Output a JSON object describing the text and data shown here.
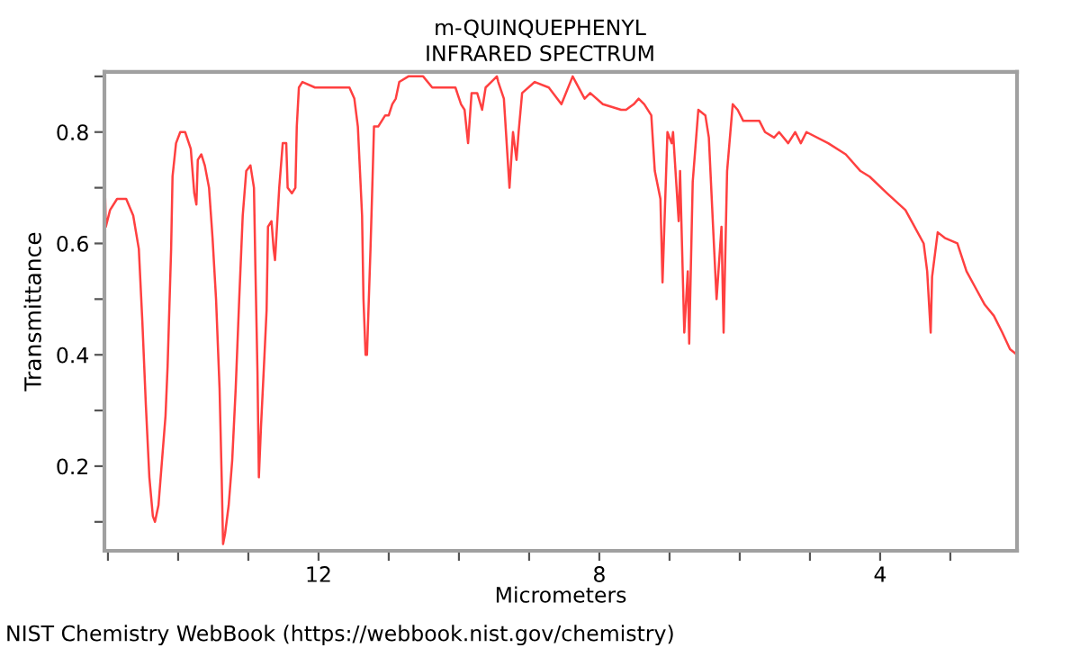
{
  "chart_data": {
    "type": "line",
    "title": "m-QUINQUEPHENYL",
    "subtitle": "INFRARED SPECTRUM",
    "xlabel": "Micrometers",
    "ylabel": "Transmittance",
    "annotations": [
      "NIST Chemistry WebBook (https://webbook.nist.gov/chemistry)"
    ],
    "xlim": [
      15.05,
      2.05
    ],
    "ylim": [
      0.048,
      0.908
    ],
    "xticks": [
      {
        "value": 15,
        "label": null
      },
      {
        "value": 14,
        "label": null
      },
      {
        "value": 13,
        "label": null
      },
      12,
      {
        "value": 11,
        "label": null
      },
      {
        "value": 10,
        "label": null
      },
      {
        "value": 9,
        "label": null
      },
      8,
      {
        "value": 7,
        "label": null
      },
      {
        "value": 6,
        "label": null
      },
      {
        "value": 5,
        "label": null
      },
      4,
      {
        "value": 3,
        "label": null
      }
    ],
    "yticks": [
      {
        "value": 0.1,
        "label": null
      },
      0.2,
      {
        "value": 0.3,
        "label": null
      },
      0.4,
      {
        "value": 0.5,
        "label": null
      },
      0.6,
      {
        "value": 0.7,
        "label": null
      },
      0.8,
      {
        "value": 0.9,
        "label": null
      }
    ],
    "grid": false,
    "legend": false,
    "marker": "none",
    "line_style": "solid",
    "series": [
      {
        "color": "#ff4040",
        "x": [
          15.04,
          15.03,
          14.97,
          14.87,
          14.74,
          14.64,
          14.56,
          14.51,
          14.46,
          14.41,
          14.36,
          14.33,
          14.28,
          14.23,
          14.18,
          14.15,
          14.1,
          14.08,
          14.03,
          13.97,
          13.9,
          13.82,
          13.77,
          13.74,
          13.72,
          13.67,
          13.62,
          13.56,
          13.51,
          13.46,
          13.41,
          13.38,
          13.36,
          13.33,
          13.28,
          13.23,
          13.18,
          13.13,
          13.08,
          13.03,
          12.97,
          12.92,
          12.9,
          12.87,
          12.85,
          12.82,
          12.77,
          12.74,
          12.72,
          12.67,
          12.64,
          12.62,
          12.56,
          12.51,
          12.46,
          12.44,
          12.38,
          12.33,
          12.31,
          12.28,
          12.23,
          12.05,
          11.82,
          11.67,
          11.56,
          11.49,
          11.44,
          11.38,
          11.36,
          11.33,
          11.31,
          11.26,
          11.23,
          11.21,
          11.15,
          11.1,
          11.05,
          11.0,
          10.95,
          10.9,
          10.85,
          10.72,
          10.51,
          10.38,
          10.21,
          10.05,
          9.97,
          9.92,
          9.87,
          9.82,
          9.74,
          9.67,
          9.62,
          9.54,
          9.46,
          9.44,
          9.36,
          9.28,
          9.23,
          9.18,
          9.15,
          9.1,
          8.92,
          8.72,
          8.54,
          8.38,
          8.21,
          8.13,
          7.95,
          7.69,
          7.62,
          7.51,
          7.44,
          7.36,
          7.26,
          7.21,
          7.13,
          7.1,
          7.03,
          6.97,
          6.95,
          6.87,
          6.85,
          6.79,
          6.74,
          6.72,
          6.67,
          6.59,
          6.49,
          6.44,
          6.38,
          6.33,
          6.26,
          6.23,
          6.18,
          6.1,
          6.03,
          5.95,
          5.72,
          5.64,
          5.51,
          5.44,
          5.31,
          5.21,
          5.13,
          5.05,
          4.74,
          4.49,
          4.28,
          4.15,
          3.9,
          3.64,
          3.51,
          3.38,
          3.33,
          3.28,
          3.26,
          3.18,
          3.08,
          2.9,
          2.77,
          2.64,
          2.51,
          2.38,
          2.26,
          2.15,
          2.05
        ],
        "values": [
          0.68,
          0.63,
          0.66,
          0.68,
          0.68,
          0.65,
          0.59,
          0.46,
          0.31,
          0.18,
          0.11,
          0.1,
          0.13,
          0.21,
          0.29,
          0.38,
          0.59,
          0.72,
          0.78,
          0.8,
          0.8,
          0.77,
          0.69,
          0.67,
          0.75,
          0.76,
          0.74,
          0.7,
          0.61,
          0.5,
          0.34,
          0.18,
          0.06,
          0.08,
          0.13,
          0.21,
          0.34,
          0.5,
          0.65,
          0.73,
          0.74,
          0.7,
          0.56,
          0.37,
          0.18,
          0.27,
          0.4,
          0.48,
          0.63,
          0.64,
          0.59,
          0.57,
          0.7,
          0.78,
          0.78,
          0.7,
          0.69,
          0.7,
          0.81,
          0.88,
          0.89,
          0.88,
          0.88,
          0.88,
          0.88,
          0.86,
          0.81,
          0.65,
          0.5,
          0.4,
          0.4,
          0.59,
          0.72,
          0.81,
          0.81,
          0.82,
          0.83,
          0.83,
          0.85,
          0.86,
          0.89,
          0.9,
          0.9,
          0.88,
          0.88,
          0.88,
          0.85,
          0.84,
          0.78,
          0.87,
          0.87,
          0.84,
          0.88,
          0.89,
          0.9,
          0.89,
          0.86,
          0.7,
          0.8,
          0.75,
          0.8,
          0.87,
          0.89,
          0.88,
          0.85,
          0.9,
          0.86,
          0.87,
          0.85,
          0.84,
          0.84,
          0.85,
          0.86,
          0.85,
          0.83,
          0.73,
          0.68,
          0.53,
          0.8,
          0.78,
          0.8,
          0.64,
          0.73,
          0.44,
          0.55,
          0.42,
          0.71,
          0.84,
          0.83,
          0.79,
          0.63,
          0.5,
          0.63,
          0.44,
          0.73,
          0.85,
          0.84,
          0.82,
          0.82,
          0.8,
          0.79,
          0.8,
          0.78,
          0.8,
          0.78,
          0.8,
          0.78,
          0.76,
          0.73,
          0.72,
          0.69,
          0.66,
          0.63,
          0.6,
          0.55,
          0.44,
          0.54,
          0.62,
          0.61,
          0.6,
          0.55,
          0.52,
          0.49,
          0.47,
          0.44,
          0.41,
          0.4
        ]
      }
    ]
  }
}
